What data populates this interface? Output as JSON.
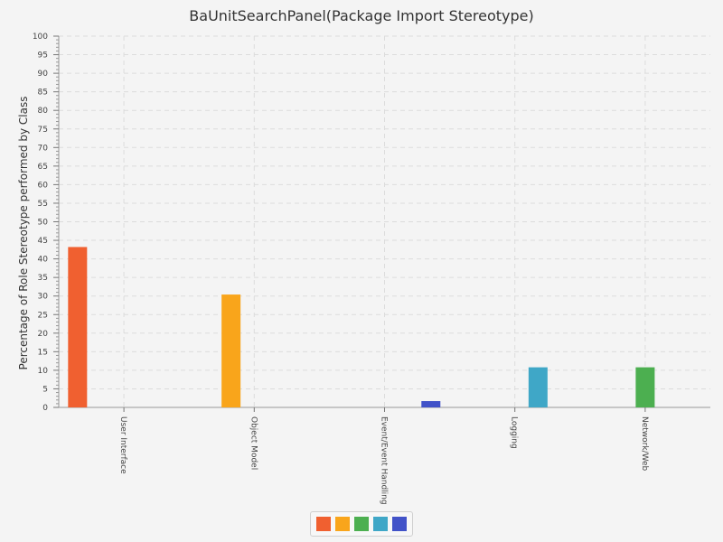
{
  "chart_data": {
    "type": "bar",
    "title": "BaUnitSearchPanel(Package Import Stereotype)",
    "xlabel": "",
    "ylabel": "Percentage of Role Stereotype performed by Class",
    "ylim": [
      0,
      100
    ],
    "y_major_ticks": [
      0,
      5,
      10,
      15,
      20,
      25,
      30,
      35,
      40,
      45,
      50,
      55,
      60,
      65,
      70,
      75,
      80,
      85,
      90,
      95,
      100
    ],
    "grid": true,
    "legend_position": "bottom",
    "categories": [
      "User Interface",
      "Object Model",
      "Event/Event Handling",
      "Logging",
      "Network/Web"
    ],
    "series": [
      {
        "color": "#f06030",
        "values": [
          43.2,
          0,
          0,
          0,
          0
        ]
      },
      {
        "color": "#f9a51b",
        "values": [
          0,
          30.4,
          0,
          0,
          0
        ]
      },
      {
        "color": "#4caf50",
        "values": [
          0,
          0,
          0,
          0,
          10.8
        ]
      },
      {
        "color": "#3fa7c7",
        "values": [
          0,
          0,
          0,
          10.8,
          0
        ]
      },
      {
        "color": "#4152c8",
        "values": [
          0,
          0,
          1.7,
          0,
          0
        ]
      }
    ]
  }
}
